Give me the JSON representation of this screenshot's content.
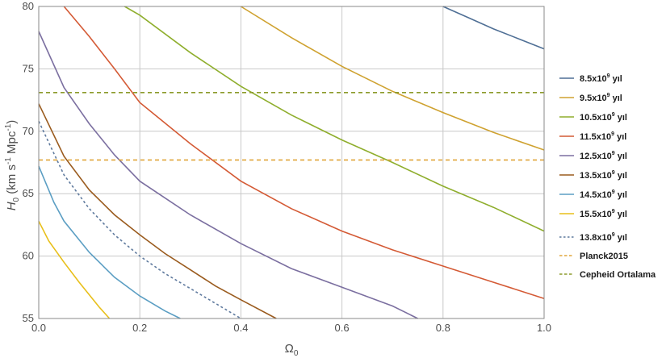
{
  "chart_data": {
    "type": "line",
    "xlabel": "Ω",
    "xlabel_sub": "0",
    "ylabel_parts": [
      "H",
      "0",
      " (km s",
      "-1",
      " Mpc",
      "-1",
      ")"
    ],
    "xlim": [
      0,
      1
    ],
    "ylim": [
      55,
      80
    ],
    "x_ticks": [
      "0.0",
      "0.2",
      "0.4",
      "0.6",
      "0.8",
      "1.0"
    ],
    "y_ticks": [
      "55",
      "60",
      "65",
      "70",
      "75",
      "80"
    ],
    "grid": true,
    "legend_position": "right",
    "series": [
      {
        "name": "8.5x10",
        "sup": "9",
        "unit": " yıl",
        "color": "#4f6f95",
        "dash": "solid",
        "x": [
          0.8,
          0.85,
          0.9,
          0.95,
          1.0
        ],
        "y": [
          80,
          79.1,
          78.2,
          77.4,
          76.6
        ]
      },
      {
        "name": "9.5x10",
        "sup": "9",
        "unit": " yıl",
        "color": "#cfa230",
        "dash": "solid",
        "x": [
          0.4,
          0.5,
          0.6,
          0.7,
          0.8,
          0.9,
          1.0
        ],
        "y": [
          80,
          77.5,
          75.2,
          73.2,
          71.5,
          69.9,
          68.5
        ]
      },
      {
        "name": "10.5x10",
        "sup": "9",
        "unit": " yıl",
        "color": "#8fae2d",
        "dash": "solid",
        "x": [
          0.17,
          0.2,
          0.3,
          0.4,
          0.5,
          0.6,
          0.7,
          0.8,
          0.9,
          1.0
        ],
        "y": [
          80,
          79.3,
          76.3,
          73.6,
          71.3,
          69.3,
          67.5,
          65.6,
          63.9,
          62.0
        ]
      },
      {
        "name": "11.5x10",
        "sup": "9",
        "unit": " yıl",
        "color": "#d45a35",
        "dash": "solid",
        "x": [
          0.05,
          0.1,
          0.15,
          0.2,
          0.3,
          0.4,
          0.5,
          0.6,
          0.7,
          0.8,
          0.9,
          1.0
        ],
        "y": [
          80,
          77.6,
          75.0,
          72.3,
          69.0,
          66.0,
          63.8,
          62.0,
          60.5,
          59.2,
          57.9,
          56.6
        ]
      },
      {
        "name": "12.5x10",
        "sup": "9",
        "unit": " yıl",
        "color": "#7b6fa0",
        "dash": "solid",
        "x": [
          0.0,
          0.05,
          0.1,
          0.15,
          0.2,
          0.3,
          0.4,
          0.5,
          0.6,
          0.7,
          0.75
        ],
        "y": [
          78.0,
          73.5,
          70.6,
          68.1,
          66.0,
          63.3,
          61.0,
          59.0,
          57.5,
          56.0,
          55.0
        ]
      },
      {
        "name": "13.5x10",
        "sup": "9",
        "unit": " yıl",
        "color": "#9a5b1e",
        "dash": "solid",
        "x": [
          0.0,
          0.05,
          0.1,
          0.15,
          0.2,
          0.25,
          0.3,
          0.35,
          0.4,
          0.47
        ],
        "y": [
          72.2,
          68.0,
          65.3,
          63.3,
          61.7,
          60.2,
          58.9,
          57.6,
          56.5,
          55.0
        ]
      },
      {
        "name": "14.5x10",
        "sup": "9",
        "unit": " yıl",
        "color": "#5b9ec3",
        "dash": "solid",
        "x": [
          0.0,
          0.03,
          0.05,
          0.1,
          0.15,
          0.2,
          0.25,
          0.28
        ],
        "y": [
          67.2,
          64.3,
          62.8,
          60.3,
          58.3,
          56.8,
          55.6,
          55.0
        ]
      },
      {
        "name": "15.5x10",
        "sup": "9",
        "unit": " yıl",
        "color": "#e8bf1a",
        "dash": "solid",
        "x": [
          0.0,
          0.02,
          0.05,
          0.08,
          0.1,
          0.12,
          0.14
        ],
        "y": [
          62.8,
          61.2,
          59.5,
          57.9,
          56.9,
          55.9,
          55.0
        ]
      },
      {
        "name": "13.8x10",
        "sup": "9",
        "unit": " yıl",
        "color": "#5f7a9e",
        "dash": "dotted",
        "x": [
          0.0,
          0.05,
          0.1,
          0.15,
          0.2,
          0.25,
          0.3,
          0.35,
          0.4
        ],
        "y": [
          70.8,
          66.5,
          63.8,
          61.7,
          60.0,
          58.6,
          57.4,
          56.2,
          55.0
        ]
      },
      {
        "name": "Planck2015",
        "sup": "",
        "unit": "",
        "color": "#e0a53a",
        "dash": "dashed",
        "x": [
          0.0,
          1.0
        ],
        "y": [
          67.7,
          67.7
        ]
      },
      {
        "name": "Cepheid Ortalama",
        "sup": "",
        "unit": "",
        "color": "#8c9a2a",
        "dash": "dashed",
        "x": [
          0.0,
          1.0
        ],
        "y": [
          73.1,
          73.1
        ]
      }
    ]
  }
}
